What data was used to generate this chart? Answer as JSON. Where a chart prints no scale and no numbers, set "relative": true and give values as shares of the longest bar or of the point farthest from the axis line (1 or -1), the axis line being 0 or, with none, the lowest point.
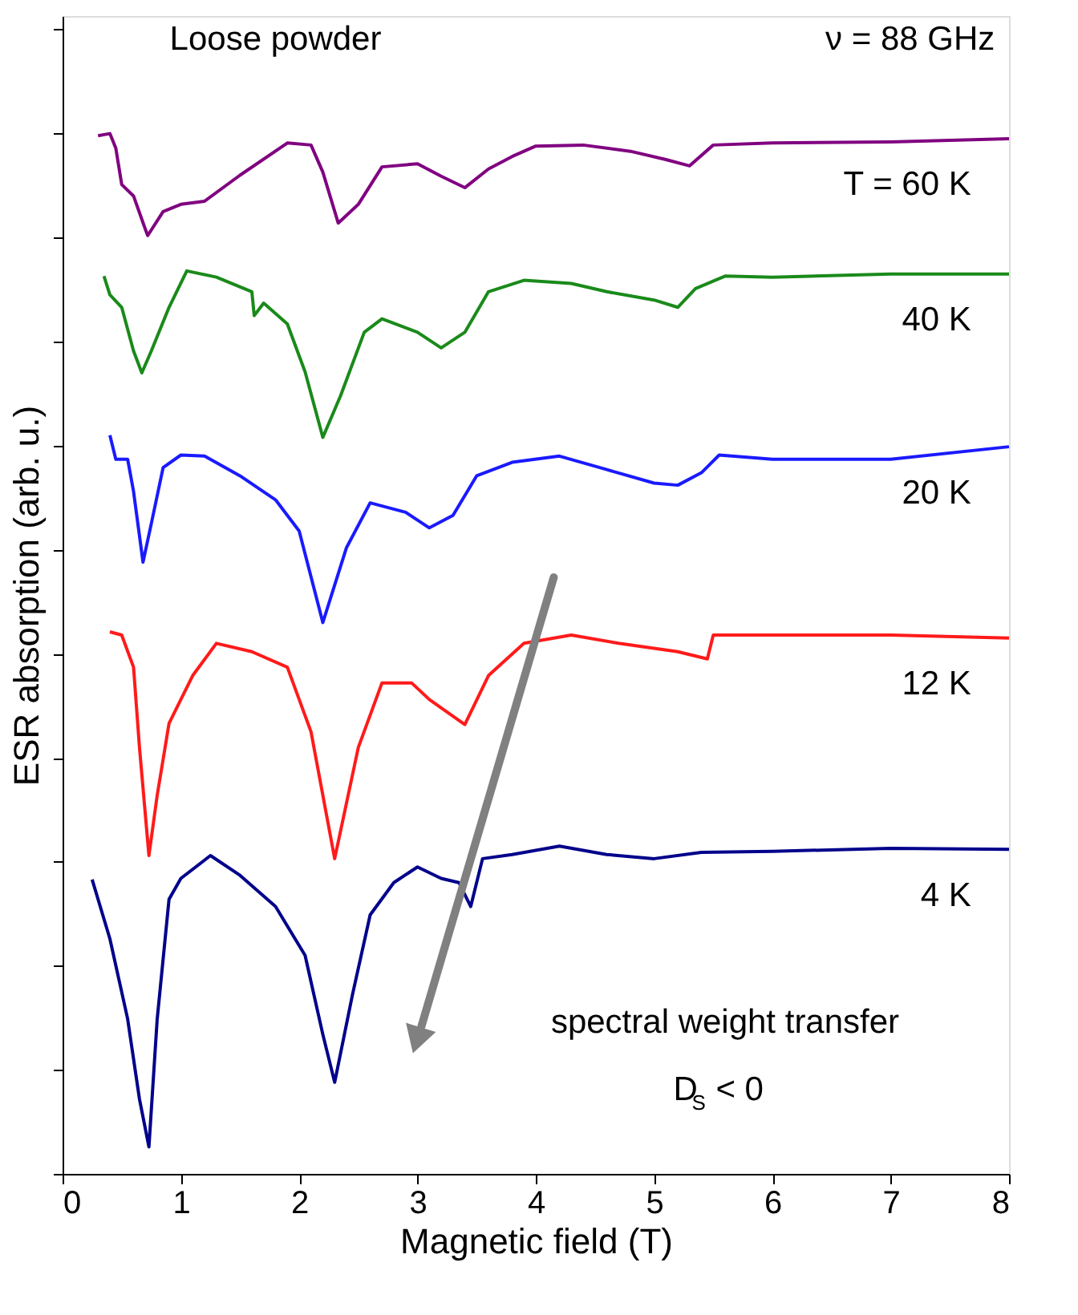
{
  "chart_data": {
    "type": "line",
    "relative": true,
    "xlabel": "Magnetic field (T)",
    "ylabel": "ESR absorption (arb. u.)",
    "xlim": [
      0,
      8
    ],
    "xticks": [
      0,
      1,
      2,
      3,
      4,
      5,
      6,
      7,
      8
    ],
    "tick_labels": "x",
    "grid": false,
    "legend": false,
    "marker": "none",
    "line_style": "solid",
    "annotations": [
      "Loose powder",
      "ν = 88 GHz",
      "spectral weight transfer",
      "D$_{S}$ < 0"
    ],
    "series": [
      {
        "name": "T = 60 K",
        "color": "#800080",
        "x": [
          0.3,
          0.4,
          0.45,
          0.5,
          0.6,
          0.7,
          0.72,
          0.85,
          1.0,
          1.2,
          1.5,
          1.9,
          2.1,
          2.2,
          2.33,
          2.5,
          2.7,
          3.0,
          3.2,
          3.4,
          3.6,
          3.8,
          4.0,
          4.4,
          4.8,
          5.1,
          5.3,
          5.5,
          6.0,
          7.0,
          8.0
        ],
        "values": [
          0.998,
          1.0,
          0.986,
          0.951,
          0.94,
          0.908,
          0.902,
          0.925,
          0.932,
          0.935,
          0.96,
          0.991,
          0.989,
          0.963,
          0.914,
          0.932,
          0.968,
          0.971,
          0.959,
          0.948,
          0.966,
          0.978,
          0.988,
          0.989,
          0.983,
          0.975,
          0.969,
          0.989,
          0.991,
          0.992,
          0.995
        ]
      },
      {
        "name": "40 K",
        "color": "#1a8a1a",
        "x": [
          0.35,
          0.4,
          0.5,
          0.6,
          0.67,
          0.75,
          0.9,
          1.05,
          1.3,
          1.6,
          1.62,
          1.7,
          1.9,
          2.05,
          2.2,
          2.35,
          2.55,
          2.7,
          3.0,
          3.2,
          3.4,
          3.6,
          3.9,
          4.3,
          4.6,
          5.0,
          5.2,
          5.35,
          5.6,
          6.0,
          7.0,
          8.0
        ],
        "values": [
          0.863,
          0.845,
          0.833,
          0.791,
          0.77,
          0.791,
          0.833,
          0.868,
          0.862,
          0.848,
          0.825,
          0.837,
          0.817,
          0.771,
          0.708,
          0.748,
          0.809,
          0.822,
          0.809,
          0.794,
          0.809,
          0.848,
          0.859,
          0.856,
          0.848,
          0.84,
          0.833,
          0.851,
          0.863,
          0.862,
          0.865,
          0.865
        ]
      },
      {
        "name": "20 K",
        "color": "#1a1aff",
        "x": [
          0.4,
          0.45,
          0.55,
          0.6,
          0.68,
          0.75,
          0.85,
          1.0,
          1.2,
          1.5,
          1.8,
          2.0,
          2.2,
          2.4,
          2.6,
          2.9,
          3.1,
          3.3,
          3.5,
          3.8,
          4.2,
          4.6,
          5.0,
          5.2,
          5.4,
          5.55,
          6.0,
          7.0,
          8.0
        ],
        "values": [
          0.71,
          0.687,
          0.687,
          0.656,
          0.588,
          0.625,
          0.679,
          0.691,
          0.69,
          0.671,
          0.648,
          0.618,
          0.53,
          0.602,
          0.645,
          0.636,
          0.621,
          0.633,
          0.671,
          0.684,
          0.69,
          0.677,
          0.664,
          0.662,
          0.674,
          0.691,
          0.687,
          0.687,
          0.699
        ]
      },
      {
        "name": "12 K",
        "color": "#ff1a1a",
        "x": [
          0.4,
          0.5,
          0.6,
          0.65,
          0.73,
          0.8,
          0.9,
          1.1,
          1.3,
          1.6,
          1.9,
          2.1,
          2.3,
          2.5,
          2.7,
          2.95,
          3.1,
          3.4,
          3.6,
          3.9,
          4.3,
          4.7,
          5.2,
          5.45,
          5.5,
          6.0,
          7.0,
          8.0
        ],
        "values": [
          0.521,
          0.518,
          0.487,
          0.41,
          0.306,
          0.364,
          0.433,
          0.479,
          0.51,
          0.502,
          0.487,
          0.425,
          0.303,
          0.41,
          0.472,
          0.472,
          0.456,
          0.432,
          0.479,
          0.51,
          0.518,
          0.51,
          0.502,
          0.495,
          0.518,
          0.518,
          0.518,
          0.515
        ]
      },
      {
        "name": "4 K",
        "color": "#00008b",
        "x": [
          0.25,
          0.4,
          0.55,
          0.65,
          0.73,
          0.8,
          0.9,
          1.0,
          1.25,
          1.5,
          1.8,
          2.05,
          2.2,
          2.3,
          2.45,
          2.6,
          2.8,
          3.0,
          3.2,
          3.35,
          3.45,
          3.55,
          3.8,
          4.2,
          4.6,
          5.0,
          5.4,
          6.0,
          7.0,
          8.0
        ],
        "values": [
          0.283,
          0.226,
          0.149,
          0.072,
          0.026,
          0.149,
          0.264,
          0.284,
          0.306,
          0.287,
          0.257,
          0.21,
          0.134,
          0.088,
          0.172,
          0.249,
          0.28,
          0.295,
          0.284,
          0.28,
          0.257,
          0.303,
          0.307,
          0.315,
          0.307,
          0.303,
          0.309,
          0.31,
          0.313,
          0.312
        ]
      }
    ]
  }
}
